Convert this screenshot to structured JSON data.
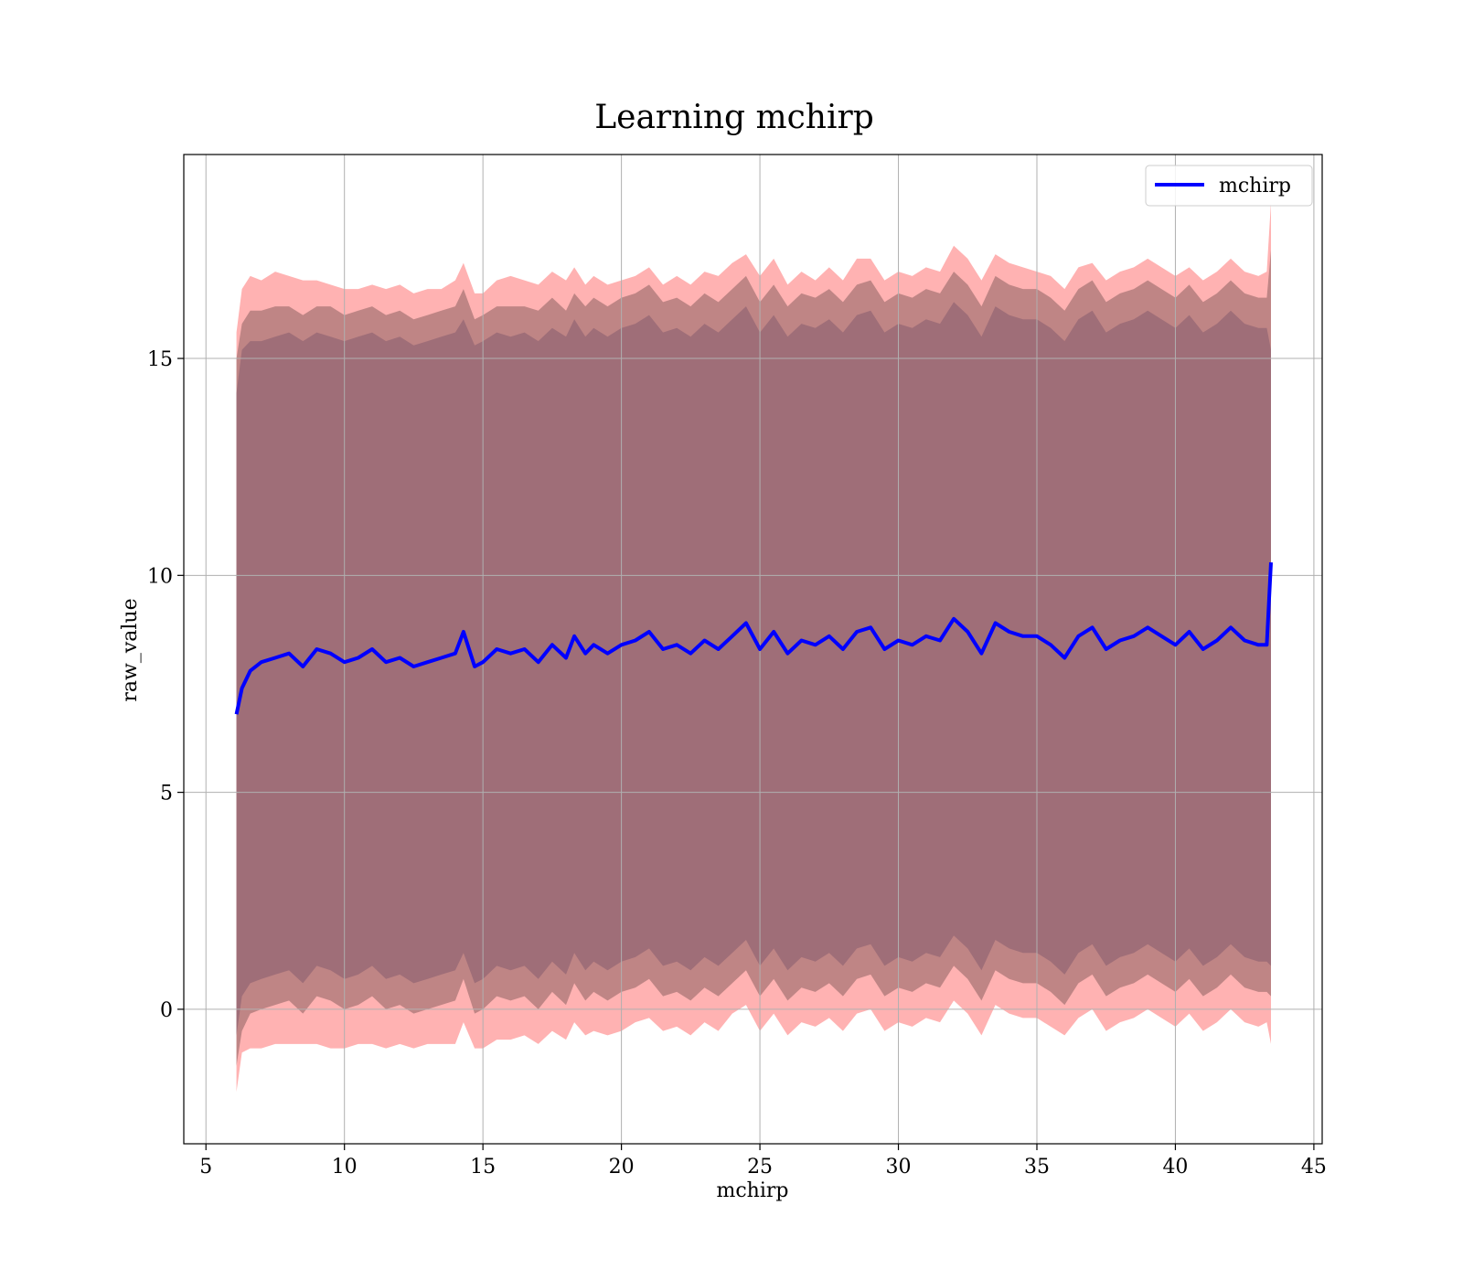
{
  "chart_data": {
    "type": "line",
    "title": "Learning mchirp",
    "xlabel": "mchirp",
    "ylabel": "raw_value",
    "xlim": [
      4.2,
      45.3
    ],
    "ylim": [
      -3.1,
      19.7
    ],
    "grid": true,
    "legend": {
      "placement": "top-right",
      "entries": [
        "mchirp"
      ]
    },
    "x_ticks": [
      5,
      10,
      15,
      20,
      25,
      30,
      35,
      40,
      45
    ],
    "y_ticks": [
      0,
      5,
      10,
      15
    ],
    "x_tick_labels": [
      "5",
      "10",
      "15",
      "20",
      "25",
      "30",
      "35",
      "40",
      "45"
    ],
    "y_tick_labels": [
      "0",
      "5",
      "10",
      "15"
    ],
    "colors": {
      "series_line": "#0000ff",
      "outer_band": "#ff6666",
      "inner_band": "#8a6060",
      "core_band": "#9f6e78",
      "grid": "#b0b0b0",
      "axes": "#000000"
    },
    "series": [
      {
        "name": "mchirp",
        "x": [
          6.1,
          6.3,
          6.6,
          7,
          7.5,
          8,
          8.5,
          9,
          9.5,
          10,
          10.5,
          11,
          11.5,
          12,
          12.5,
          13,
          13.5,
          14,
          14.3,
          14.7,
          15,
          15.5,
          16,
          16.5,
          17,
          17.5,
          18,
          18.3,
          18.7,
          19,
          19.5,
          20,
          20.5,
          21,
          21.5,
          22,
          22.5,
          23,
          23.5,
          24,
          24.5,
          25,
          25.5,
          26,
          26.5,
          27,
          27.5,
          28,
          28.5,
          29,
          29.5,
          30,
          30.5,
          31,
          31.5,
          32,
          32.5,
          33,
          33.5,
          34,
          34.5,
          35,
          35.5,
          36,
          36.5,
          37,
          37.5,
          38,
          38.5,
          39,
          39.5,
          40,
          40.5,
          41,
          41.5,
          42,
          42.5,
          43,
          43.3,
          43.45
        ],
        "values": [
          6.8,
          7.4,
          7.8,
          8.0,
          8.1,
          8.2,
          7.9,
          8.3,
          8.2,
          8.0,
          8.1,
          8.3,
          8.0,
          8.1,
          7.9,
          8.0,
          8.1,
          8.2,
          8.7,
          7.9,
          8.0,
          8.3,
          8.2,
          8.3,
          8.0,
          8.4,
          8.1,
          8.6,
          8.2,
          8.4,
          8.2,
          8.4,
          8.5,
          8.7,
          8.3,
          8.4,
          8.2,
          8.5,
          8.3,
          8.6,
          8.9,
          8.3,
          8.7,
          8.2,
          8.5,
          8.4,
          8.6,
          8.3,
          8.7,
          8.8,
          8.3,
          8.5,
          8.4,
          8.6,
          8.5,
          9.0,
          8.7,
          8.2,
          8.9,
          8.7,
          8.6,
          8.6,
          8.4,
          8.1,
          8.6,
          8.8,
          8.3,
          8.5,
          8.6,
          8.8,
          8.6,
          8.4,
          8.7,
          8.3,
          8.5,
          8.8,
          8.5,
          8.4,
          8.4,
          10.3
        ]
      }
    ],
    "bands": [
      {
        "name": "outer",
        "upper": [
          15.6,
          16.6,
          16.9,
          16.8,
          17.0,
          16.9,
          16.8,
          16.8,
          16.7,
          16.6,
          16.6,
          16.7,
          16.6,
          16.7,
          16.5,
          16.6,
          16.6,
          16.8,
          17.2,
          16.5,
          16.5,
          16.8,
          16.9,
          16.8,
          16.7,
          17.0,
          16.8,
          17.1,
          16.7,
          16.9,
          16.7,
          16.8,
          16.9,
          17.1,
          16.7,
          16.9,
          16.7,
          17.0,
          16.9,
          17.2,
          17.4,
          16.9,
          17.3,
          16.7,
          17.0,
          16.8,
          17.1,
          16.8,
          17.3,
          17.3,
          16.8,
          17.0,
          16.9,
          17.1,
          17.0,
          17.6,
          17.3,
          16.8,
          17.4,
          17.2,
          17.1,
          17.0,
          16.9,
          16.6,
          17.1,
          17.2,
          16.8,
          17.0,
          17.1,
          17.3,
          17.1,
          16.9,
          17.1,
          16.8,
          17.0,
          17.3,
          17.0,
          16.9,
          17.0,
          18.6
        ],
        "lower": [
          -1.9,
          -1.0,
          -0.9,
          -0.9,
          -0.8,
          -0.8,
          -0.8,
          -0.8,
          -0.9,
          -0.9,
          -0.8,
          -0.8,
          -0.9,
          -0.8,
          -0.9,
          -0.8,
          -0.8,
          -0.8,
          -0.3,
          -0.9,
          -0.9,
          -0.7,
          -0.7,
          -0.6,
          -0.8,
          -0.5,
          -0.7,
          -0.3,
          -0.6,
          -0.5,
          -0.6,
          -0.5,
          -0.3,
          -0.2,
          -0.5,
          -0.4,
          -0.6,
          -0.3,
          -0.5,
          -0.1,
          0.1,
          -0.5,
          -0.1,
          -0.6,
          -0.3,
          -0.4,
          -0.2,
          -0.5,
          -0.1,
          0.0,
          -0.5,
          -0.3,
          -0.4,
          -0.2,
          -0.3,
          0.2,
          -0.1,
          -0.6,
          0.1,
          -0.1,
          -0.2,
          -0.2,
          -0.4,
          -0.6,
          -0.2,
          0.0,
          -0.5,
          -0.3,
          -0.2,
          0.0,
          -0.2,
          -0.4,
          -0.1,
          -0.5,
          -0.3,
          0.0,
          -0.3,
          -0.4,
          -0.3,
          -0.8
        ]
      },
      {
        "name": "inner",
        "upper": [
          15.0,
          15.8,
          16.1,
          16.1,
          16.2,
          16.2,
          16.0,
          16.2,
          16.2,
          16.0,
          16.1,
          16.2,
          16.0,
          16.1,
          15.9,
          16.0,
          16.1,
          16.2,
          16.6,
          15.9,
          16.0,
          16.2,
          16.2,
          16.2,
          16.1,
          16.4,
          16.1,
          16.5,
          16.2,
          16.4,
          16.2,
          16.4,
          16.5,
          16.7,
          16.3,
          16.4,
          16.2,
          16.5,
          16.3,
          16.6,
          16.9,
          16.3,
          16.7,
          16.2,
          16.5,
          16.4,
          16.6,
          16.3,
          16.7,
          16.8,
          16.3,
          16.5,
          16.4,
          16.6,
          16.5,
          17.0,
          16.7,
          16.2,
          16.9,
          16.7,
          16.6,
          16.6,
          16.4,
          16.1,
          16.6,
          16.8,
          16.3,
          16.5,
          16.6,
          16.8,
          16.6,
          16.4,
          16.7,
          16.3,
          16.5,
          16.8,
          16.5,
          16.4,
          16.4,
          17.5
        ],
        "lower": [
          -1.3,
          -0.5,
          -0.1,
          0.0,
          0.1,
          0.2,
          -0.1,
          0.3,
          0.2,
          0.0,
          0.1,
          0.3,
          0.0,
          0.1,
          -0.1,
          0.0,
          0.1,
          0.2,
          0.7,
          -0.1,
          0.0,
          0.3,
          0.2,
          0.3,
          0.0,
          0.4,
          0.1,
          0.6,
          0.2,
          0.4,
          0.2,
          0.4,
          0.5,
          0.7,
          0.3,
          0.4,
          0.2,
          0.5,
          0.3,
          0.6,
          0.9,
          0.3,
          0.7,
          0.2,
          0.5,
          0.4,
          0.6,
          0.3,
          0.7,
          0.8,
          0.3,
          0.5,
          0.4,
          0.6,
          0.5,
          1.0,
          0.7,
          0.2,
          0.9,
          0.7,
          0.6,
          0.6,
          0.4,
          0.1,
          0.6,
          0.8,
          0.3,
          0.5,
          0.6,
          0.8,
          0.6,
          0.4,
          0.7,
          0.3,
          0.5,
          0.8,
          0.5,
          0.4,
          0.4,
          0.3
        ]
      },
      {
        "name": "core",
        "upper": [
          14.2,
          15.2,
          15.4,
          15.4,
          15.5,
          15.6,
          15.4,
          15.6,
          15.5,
          15.4,
          15.5,
          15.6,
          15.4,
          15.5,
          15.3,
          15.4,
          15.5,
          15.6,
          15.9,
          15.3,
          15.4,
          15.6,
          15.5,
          15.6,
          15.4,
          15.7,
          15.5,
          15.9,
          15.5,
          15.7,
          15.5,
          15.7,
          15.8,
          16.0,
          15.6,
          15.7,
          15.5,
          15.8,
          15.6,
          15.9,
          16.2,
          15.6,
          16.0,
          15.5,
          15.8,
          15.7,
          15.9,
          15.6,
          16.0,
          16.1,
          15.6,
          15.8,
          15.7,
          15.9,
          15.8,
          16.3,
          16.0,
          15.5,
          16.2,
          16.0,
          15.9,
          15.9,
          15.7,
          15.4,
          15.9,
          16.1,
          15.6,
          15.8,
          15.9,
          16.1,
          15.9,
          15.7,
          16.0,
          15.6,
          15.8,
          16.1,
          15.8,
          15.7,
          15.7,
          15.2
        ],
        "lower": [
          -0.6,
          0.3,
          0.6,
          0.7,
          0.8,
          0.9,
          0.6,
          1.0,
          0.9,
          0.7,
          0.8,
          1.0,
          0.7,
          0.8,
          0.6,
          0.7,
          0.8,
          0.9,
          1.3,
          0.6,
          0.7,
          1.0,
          0.9,
          1.0,
          0.7,
          1.1,
          0.8,
          1.3,
          0.9,
          1.1,
          0.9,
          1.1,
          1.2,
          1.4,
          1.0,
          1.1,
          0.9,
          1.2,
          1.0,
          1.3,
          1.6,
          1.0,
          1.4,
          0.9,
          1.2,
          1.1,
          1.3,
          1.0,
          1.4,
          1.5,
          1.0,
          1.2,
          1.1,
          1.3,
          1.2,
          1.7,
          1.4,
          0.9,
          1.6,
          1.4,
          1.3,
          1.3,
          1.1,
          0.8,
          1.3,
          1.5,
          1.0,
          1.2,
          1.3,
          1.5,
          1.3,
          1.1,
          1.4,
          1.0,
          1.2,
          1.5,
          1.2,
          1.1,
          1.1,
          1.0
        ]
      }
    ]
  }
}
